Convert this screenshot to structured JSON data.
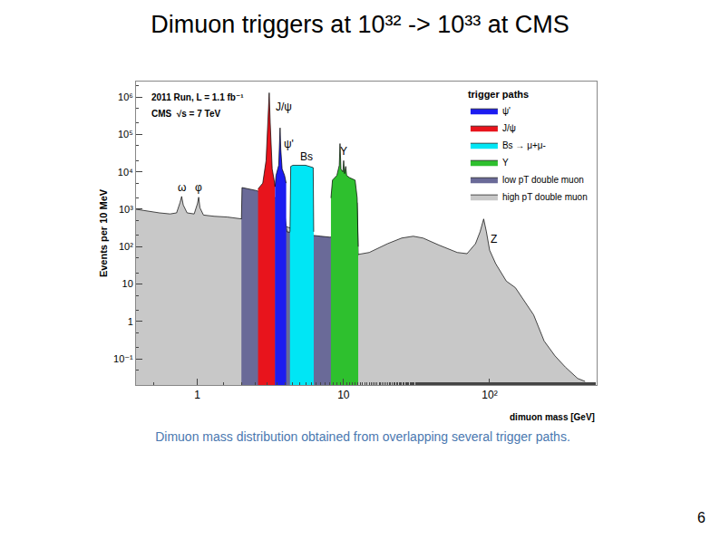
{
  "slide": {
    "title": "Dimuon triggers at 10³² -> 10³³ at CMS",
    "caption": "Dimuon mass distribution obtained from overlapping several trigger paths.",
    "page_number": 6
  },
  "chart_data": {
    "type": "area",
    "log": true,
    "grid": false,
    "x_label": "dimuon mass [GeV]",
    "y_label": "Events per 10 MeV",
    "xlim": [
      0.38,
      540
    ],
    "ylim": [
      0.02,
      2600000
    ],
    "xticks": [
      1,
      10,
      {
        "value": 100,
        "label": "10²"
      }
    ],
    "yticks": [
      {
        "value": 0.1,
        "label": "10⁻¹"
      },
      1,
      10,
      {
        "value": 100,
        "label": "10²"
      },
      {
        "value": 1000,
        "label": "10³"
      },
      {
        "value": 10000,
        "label": "10⁴"
      },
      {
        "value": 100000,
        "label": "10⁵"
      },
      {
        "value": 1000000,
        "label": "10⁶"
      }
    ],
    "legend": "upper right",
    "legend_title": "trigger paths",
    "annotations": [
      {
        "text": "2011 Run, L = 1.1 fb⁻¹"
      },
      {
        "text": "CMS  √s = 7 TeV"
      }
    ],
    "peak_labels": [
      {
        "text": "ω",
        "x": 0.78,
        "y": 3800
      },
      {
        "text": "φ",
        "x": 1.02,
        "y": 3800
      },
      {
        "text": "J/ψ",
        "x": 3.9,
        "y": 540000
      },
      {
        "text": "ψ'",
        "x": 4.2,
        "y": 57000
      },
      {
        "text": "Bs",
        "x": 5.6,
        "y": 26000
      },
      {
        "text": "Υ",
        "x": 10,
        "y": 35000
      },
      {
        "text": "Z",
        "x": 107,
        "y": 160
      }
    ],
    "series": [
      {
        "name": "ψ'",
        "color": "#1c1cf0",
        "x": [
          3.4,
          3.45,
          3.6,
          3.68,
          3.72,
          3.8,
          3.95,
          4.05
        ],
        "values": [
          4000,
          8000,
          15000,
          150000,
          40000,
          12000,
          8000,
          5000
        ]
      },
      {
        "name": "J/ψ",
        "color": "#e8141c",
        "x": [
          2.6,
          2.8,
          2.95,
          3.05,
          3.1,
          3.15,
          3.25,
          3.35,
          3.4
        ],
        "values": [
          3500,
          5000,
          20000,
          300000,
          1300000,
          200000,
          12000,
          6000,
          4000
        ]
      },
      {
        "name": "Bs → μ+μ-",
        "color": "#00e6f5",
        "x": [
          4.3,
          4.35,
          4.5,
          5.5,
          6.2,
          6.25
        ],
        "values": [
          250,
          14000,
          15000,
          15000,
          13000,
          250
        ]
      },
      {
        "name": "Υ",
        "color": "#2ec02e",
        "x": [
          8.2,
          8.4,
          9,
          9.35,
          9.46,
          9.6,
          9.9,
          10.02,
          10.15,
          10.35,
          10.5,
          11,
          12,
          12.4,
          12.6
        ],
        "values": [
          2000,
          6000,
          8000,
          15000,
          57000,
          12000,
          10000,
          20000,
          9000,
          14000,
          8000,
          7000,
          6000,
          2000,
          100
        ]
      },
      {
        "name": "low pT double muon",
        "color": "#6a6a98",
        "x": [
          2,
          2.02,
          2.5,
          2.8,
          3.3,
          3.6,
          3.9,
          4.1,
          5,
          6,
          7,
          8,
          8.4,
          8.5,
          9,
          10,
          11,
          12,
          12.4,
          12.6
        ],
        "values": [
          550,
          3800,
          3200,
          2800,
          2200,
          1800,
          1200,
          250,
          220,
          200,
          190,
          180,
          180,
          2000,
          2500,
          2000,
          1800,
          1600,
          1500,
          60
        ]
      },
      {
        "name": "high pT double muon",
        "color": "#c8c8c8",
        "x": [
          0.38,
          0.45,
          0.55,
          0.65,
          0.72,
          0.76,
          0.78,
          0.8,
          0.85,
          0.95,
          1.0,
          1.02,
          1.04,
          1.1,
          1.3,
          1.6,
          2,
          3,
          4,
          6,
          9,
          12,
          15,
          20,
          25,
          30,
          35,
          45,
          60,
          70,
          80,
          86,
          91,
          95,
          100,
          110,
          130,
          150,
          200,
          236,
          280,
          330,
          400,
          450
        ],
        "values": [
          1000,
          900,
          800,
          750,
          800,
          1500,
          2200,
          1300,
          800,
          750,
          1400,
          2100,
          1100,
          700,
          650,
          620,
          550,
          450,
          350,
          200,
          100,
          60,
          70,
          120,
          170,
          190,
          170,
          110,
          70,
          65,
          120,
          250,
          550,
          250,
          80,
          35,
          12,
          8,
          1.5,
          0.3,
          0.12,
          0.06,
          0.03,
          0.025
        ]
      }
    ]
  }
}
